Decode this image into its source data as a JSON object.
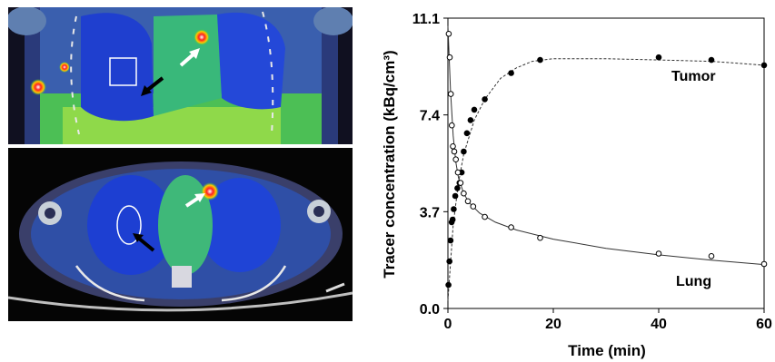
{
  "figure": {
    "left_images": [
      {
        "view": "coronal",
        "content": "PET/CT fusion, coronal slice with square region of interest in lung and arrows"
      },
      {
        "view": "axial",
        "content": "PET/CT fusion, axial slice with oval region of interest in lung and arrows"
      }
    ]
  },
  "chart_data": {
    "type": "scatter",
    "xlabel": "Time (min)",
    "ylabel": "Tracer concentration (kBq/cm³)",
    "xlim": [
      0,
      60
    ],
    "ylim": [
      0,
      11.1
    ],
    "x_ticks": [
      "0",
      "20",
      "40",
      "60"
    ],
    "y_ticks": [
      "0.0",
      "3.7",
      "7.4",
      "11.1"
    ],
    "grid": false,
    "series": [
      {
        "name": "Tumor",
        "marker": "filled-circle",
        "points": [
          [
            0.1,
            0.9
          ],
          [
            0.3,
            1.8
          ],
          [
            0.5,
            2.6
          ],
          [
            0.7,
            3.3
          ],
          [
            0.9,
            3.4
          ],
          [
            1.1,
            3.8
          ],
          [
            1.4,
            4.3
          ],
          [
            1.8,
            4.6
          ],
          [
            2.2,
            4.8
          ],
          [
            2.6,
            5.2
          ],
          [
            3.0,
            6.0
          ],
          [
            3.6,
            6.7
          ],
          [
            4.3,
            7.2
          ],
          [
            5.0,
            7.6
          ],
          [
            7.0,
            8.0
          ],
          [
            12.0,
            9.0
          ],
          [
            17.5,
            9.5
          ],
          [
            40.0,
            9.6
          ],
          [
            50.0,
            9.5
          ],
          [
            60.0,
            9.3
          ]
        ],
        "fit": [
          [
            0,
            0.3
          ],
          [
            1,
            3.2
          ],
          [
            2,
            4.8
          ],
          [
            3,
            5.9
          ],
          [
            5,
            7.2
          ],
          [
            7,
            8.0
          ],
          [
            10,
            8.8
          ],
          [
            13,
            9.2
          ],
          [
            16,
            9.45
          ],
          [
            20,
            9.55
          ],
          [
            30,
            9.55
          ],
          [
            40,
            9.5
          ],
          [
            50,
            9.45
          ],
          [
            60,
            9.3
          ]
        ]
      },
      {
        "name": "Lung",
        "marker": "open-circle",
        "points": [
          [
            0.15,
            10.5
          ],
          [
            0.35,
            9.6
          ],
          [
            0.55,
            8.2
          ],
          [
            0.75,
            7.0
          ],
          [
            0.95,
            6.2
          ],
          [
            1.2,
            6.0
          ],
          [
            1.5,
            5.7
          ],
          [
            1.9,
            5.2
          ],
          [
            2.4,
            4.8
          ],
          [
            3.0,
            4.4
          ],
          [
            3.8,
            4.1
          ],
          [
            4.8,
            3.9
          ],
          [
            7.0,
            3.5
          ],
          [
            12.0,
            3.1
          ],
          [
            17.5,
            2.7
          ],
          [
            40.0,
            2.1
          ],
          [
            50.0,
            2.0
          ],
          [
            60.0,
            1.7
          ]
        ],
        "fit": [
          [
            0,
            10.8
          ],
          [
            0.5,
            8.3
          ],
          [
            1,
            6.6
          ],
          [
            1.5,
            5.6
          ],
          [
            2,
            5.0
          ],
          [
            3,
            4.4
          ],
          [
            4,
            4.05
          ],
          [
            6,
            3.65
          ],
          [
            9,
            3.3
          ],
          [
            13,
            3.0
          ],
          [
            20,
            2.65
          ],
          [
            30,
            2.3
          ],
          [
            40,
            2.05
          ],
          [
            50,
            1.85
          ],
          [
            60,
            1.68
          ]
        ]
      }
    ]
  }
}
